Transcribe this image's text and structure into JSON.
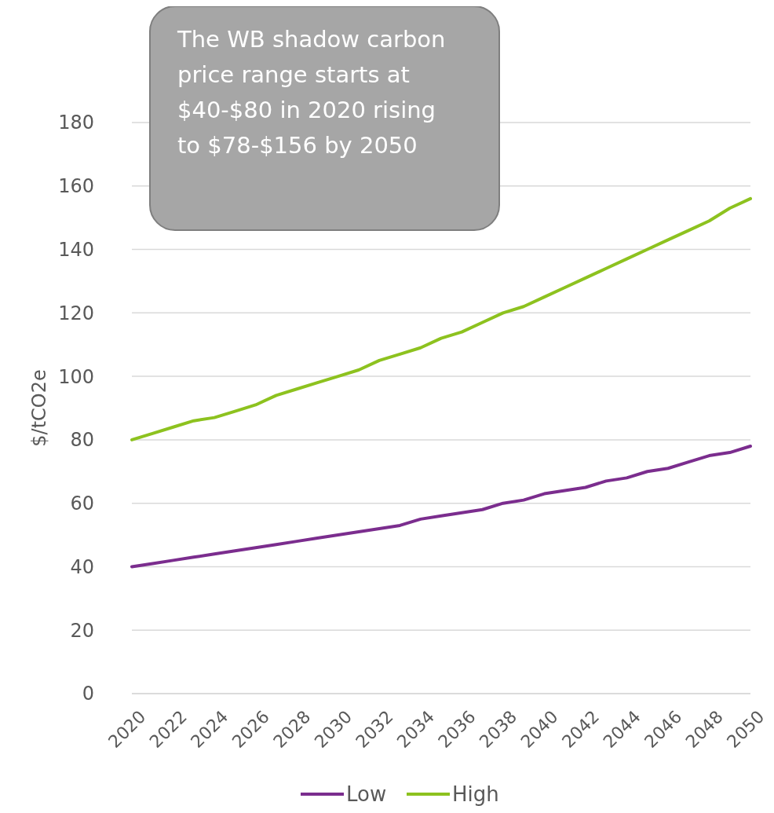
{
  "chart_data": {
    "type": "line",
    "ylabel": "$/tCO2e",
    "x": [
      2020,
      2021,
      2022,
      2023,
      2024,
      2025,
      2026,
      2027,
      2028,
      2029,
      2030,
      2031,
      2032,
      2033,
      2034,
      2035,
      2036,
      2037,
      2038,
      2039,
      2040,
      2041,
      2042,
      2043,
      2044,
      2045,
      2046,
      2047,
      2048,
      2049,
      2050
    ],
    "series": [
      {
        "name": "Low",
        "color": "#7b2d8e",
        "values": [
          40,
          41,
          42,
          43,
          44,
          45,
          46,
          47,
          48,
          49,
          50,
          51,
          52,
          53,
          55,
          56,
          57,
          58,
          60,
          61,
          63,
          64,
          65,
          67,
          68,
          70,
          71,
          73,
          75,
          76,
          78
        ]
      },
      {
        "name": "High",
        "color": "#8dc21f",
        "values": [
          80,
          82,
          84,
          86,
          87,
          89,
          91,
          94,
          96,
          98,
          100,
          102,
          105,
          107,
          109,
          112,
          114,
          117,
          120,
          122,
          125,
          128,
          131,
          134,
          137,
          140,
          143,
          146,
          149,
          153,
          156
        ]
      }
    ],
    "xlim": [
      2020,
      2050
    ],
    "xticks": [
      2020,
      2022,
      2024,
      2026,
      2028,
      2030,
      2032,
      2034,
      2036,
      2038,
      2040,
      2042,
      2044,
      2046,
      2048,
      2050
    ],
    "ylim": [
      0,
      180
    ],
    "yticks": [
      0,
      20,
      40,
      60,
      80,
      100,
      120,
      140,
      160,
      180
    ],
    "grid": "y",
    "legend": "bottom",
    "line_style": "solid",
    "marker": "none",
    "annotations": [
      "The WB shadow carbon price range starts at $40-$80 in 2020 rising to $78-$156 by 2050"
    ]
  }
}
